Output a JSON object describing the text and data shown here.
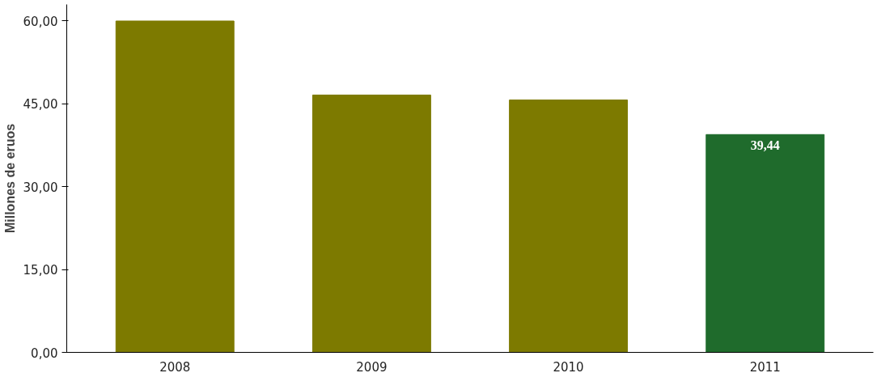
{
  "chart_data": {
    "type": "bar",
    "ylabel": "Millones de eruos",
    "categories": [
      "2008",
      "2009",
      "2010",
      "2011"
    ],
    "values": [
      60.0,
      46.6,
      45.7,
      39.44
    ],
    "colors": [
      "#7d7a00",
      "#7d7a00",
      "#7d7a00",
      "#1f6b2c"
    ],
    "value_labels": [
      null,
      null,
      null,
      "39,44"
    ],
    "ylim": [
      0,
      63
    ],
    "yticks": [
      {
        "value": 0,
        "label": "0,00"
      },
      {
        "value": 15,
        "label": "15,00"
      },
      {
        "value": 30,
        "label": "30,00"
      },
      {
        "value": 45,
        "label": "45,00"
      },
      {
        "value": 60,
        "label": "60,00"
      }
    ],
    "grid": false
  }
}
